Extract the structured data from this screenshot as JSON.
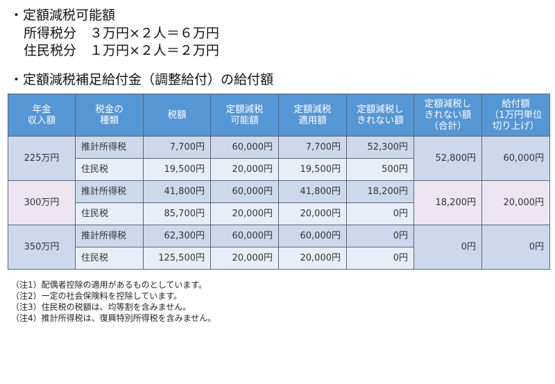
{
  "section1": {
    "heading": "・定額減税可能額",
    "lines": [
      "所得税分　３万円×２人＝６万円",
      "住民税分　１万円×２人＝２万円"
    ]
  },
  "section2": {
    "heading": "・定額減税補足給付金（調整給付）の給付額"
  },
  "table": {
    "headers": [
      "年金\n収入額",
      "税金の\n種類",
      "税額",
      "定額減税\n可能額",
      "定額減税\n適用額",
      "定額減税し\nきれない額",
      "定額減税し\nきれない額\n（合計）",
      "給付額\n（1万円単位\n切り上げ）"
    ],
    "groups": [
      {
        "income": "225万円",
        "rows": [
          {
            "type": "推計所得税",
            "tax": "7,700円",
            "possible": "60,000円",
            "applied": "7,700円",
            "remaining": "52,300円"
          },
          {
            "type": "住民税",
            "tax": "19,500円",
            "possible": "20,000円",
            "applied": "19,500円",
            "remaining": "500円"
          }
        ],
        "remaining_total": "52,800円",
        "benefit": "60,000円"
      },
      {
        "income": "300万円",
        "rows": [
          {
            "type": "推計所得税",
            "tax": "41,800円",
            "possible": "60,000円",
            "applied": "41,800円",
            "remaining": "18,200円"
          },
          {
            "type": "住民税",
            "tax": "85,700円",
            "possible": "20,000円",
            "applied": "20,000円",
            "remaining": "0円"
          }
        ],
        "remaining_total": "18,200円",
        "benefit": "20,000円"
      },
      {
        "income": "350万円",
        "rows": [
          {
            "type": "推計所得税",
            "tax": "62,300円",
            "possible": "60,000円",
            "applied": "60,000円",
            "remaining": "0円"
          },
          {
            "type": "住民税",
            "tax": "125,500円",
            "possible": "20,000円",
            "applied": "20,000円",
            "remaining": "0円"
          }
        ],
        "remaining_total": "0円",
        "benefit": "0円"
      }
    ]
  },
  "notes": [
    "（注1）配偶者控除の適用があるものとしています。",
    "（注2）一定の社会保険料を控除しています。",
    "（注3）住民税の税額は、均等割を含みません。",
    "（注4）推計所得税は、復興特別所得税を含みません。"
  ],
  "colors": {
    "header_bg": "#5596d5",
    "row_blue": "#ccd9ec",
    "row_light": "#e8eef7",
    "row_lavender": "#ede6f2",
    "border": "#5a6470"
  }
}
